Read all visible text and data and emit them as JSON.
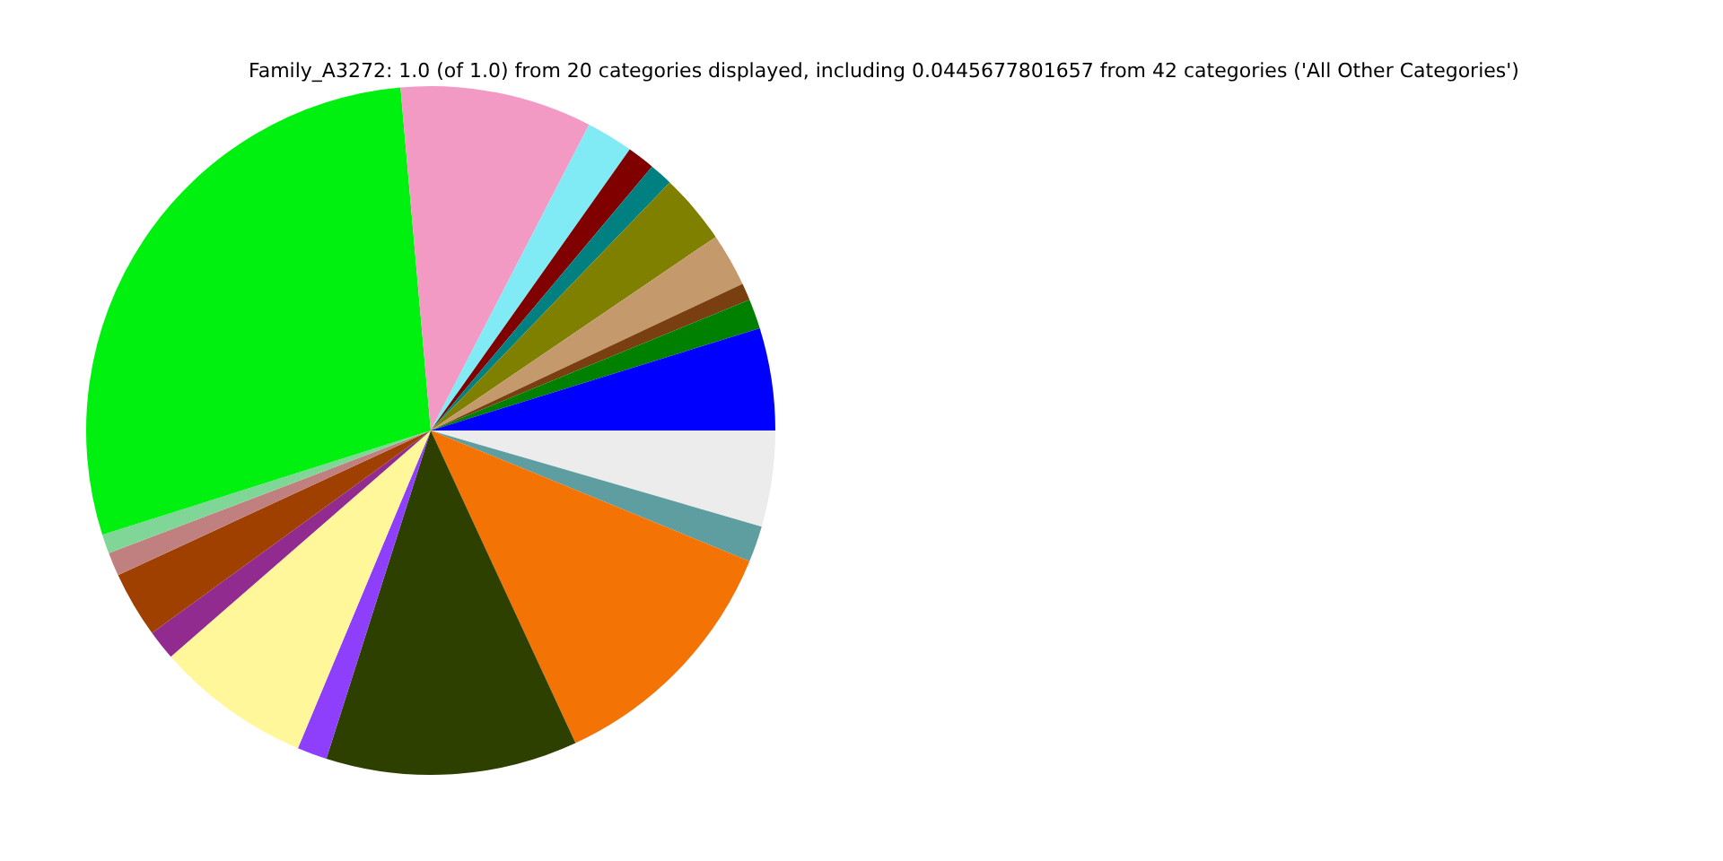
{
  "chart_data": {
    "type": "pie",
    "title": "Family_A3272: 1.0 (of 1.0) from 20 categories displayed, including 0.0445677801657 from 42 categories ('All Other Categories')",
    "categories": [
      null,
      null,
      null,
      null,
      null,
      null,
      null,
      null,
      null,
      null,
      null,
      null,
      null,
      null,
      null,
      null,
      null,
      null,
      null,
      null
    ],
    "values": [
      4.8,
      1.4,
      0.8,
      2.5,
      3.3,
      1.1,
      1.3,
      2.2,
      9.0,
      28.5,
      0.9,
      1.1,
      3.1,
      1.4,
      7.3,
      1.4,
      11.8,
      11.9,
      1.7,
      4.5
    ],
    "colors": [
      "#0000ff",
      "#008000",
      "#7a3f10",
      "#c49a6c",
      "#808000",
      "#008080",
      "#800000",
      "#80eaf5",
      "#f39ac4",
      "#00f010",
      "#7fd696",
      "#c08080",
      "#a04000",
      "#922b8f",
      "#fff799",
      "#8e3ffc",
      "#2d4000",
      "#f37304",
      "#5f9ea0",
      "#ececec"
    ],
    "legend": false
  }
}
